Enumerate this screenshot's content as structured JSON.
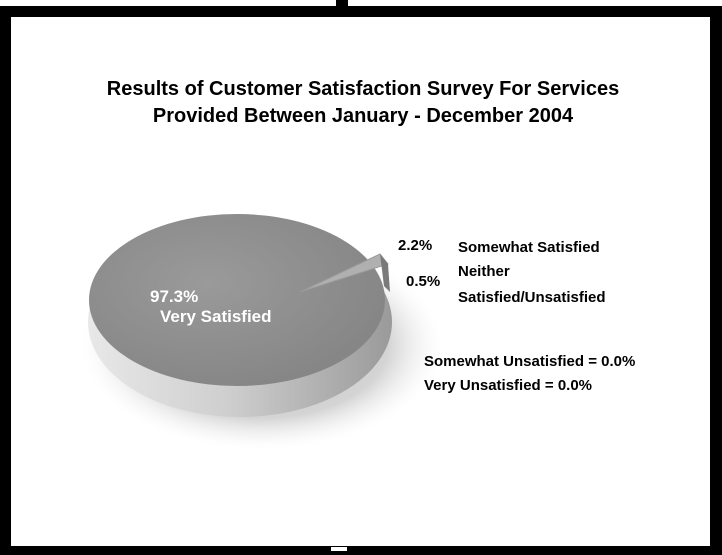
{
  "chart_data": {
    "type": "pie",
    "title": "Results of Customer Satisfaction Survey For Services",
    "subtitle": "Provided Between January - December 2004",
    "slices": [
      {
        "label_line1": "97.3%",
        "label_line2": "Very Satisfied",
        "value": 97.3
      },
      {
        "pct_label": "2.2%",
        "name": "Somewhat Satisfied",
        "value": 2.2
      },
      {
        "pct_label": "0.5%",
        "name_line1": "Neither",
        "name_line2": "Satisfied/Unsatisfied",
        "value": 0.5
      }
    ],
    "notes": [
      "Somewhat Unsatisfied = 0.0%",
      "Very Unsatisfied = 0.0%"
    ],
    "colors": {
      "very_satisfied": "#8e8e8e",
      "somewhat_satisfied": "#a8a8a8",
      "neither": "#7a7a7a",
      "shadow": "#d6d6d6"
    }
  }
}
